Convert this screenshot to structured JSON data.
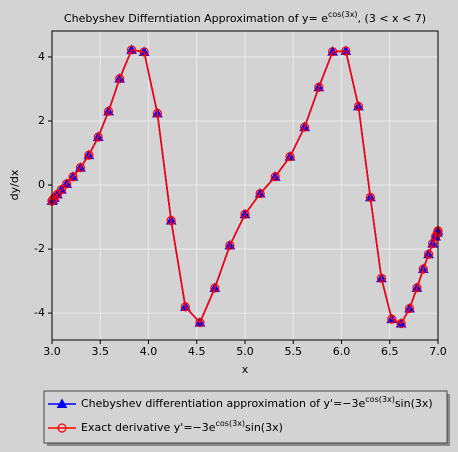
{
  "chart_data": {
    "type": "line",
    "title": [
      "Chebyshev Differntiation Approximation of y= e",
      "cos(3x)",
      ", (3 < x < 7)"
    ],
    "x_label": "x",
    "y_label": "dy/dx",
    "x": [
      3,
      3.00616,
      3.02462,
      3.05526,
      3.09789,
      3.15224,
      3.21799,
      3.29472,
      3.38197,
      3.47918,
      3.58579,
      3.7011,
      3.82443,
      3.955,
      4.09202,
      4.23463,
      4.38197,
      4.53309,
      4.68713,
      4.84309,
      5,
      5.15691,
      5.31287,
      5.46691,
      5.61803,
      5.76537,
      5.90798,
      6.045,
      6.17557,
      6.2989,
      6.41421,
      6.52082,
      6.61803,
      6.70528,
      6.78201,
      6.84776,
      6.90211,
      6.94474,
      6.97538,
      6.99384,
      7
    ],
    "series": [
      {
        "name": [
          "Chebyshev differentiation approximation of y'=−3e",
          "cos(3x)",
          "sin(3x)"
        ],
        "color": "#0000ff",
        "marker": "triangle",
        "values": [
          -0.4971,
          -0.4732,
          -0.4032,
          -0.2922,
          -0.1455,
          0.0353,
          0.2574,
          0.5428,
          0.9343,
          1.4991,
          2.3015,
          3.3211,
          4.2193,
          4.1561,
          2.2387,
          -1.1074,
          -3.8055,
          -4.2961,
          -3.2174,
          -1.8861,
          -0.9126,
          -0.2667,
          0.2591,
          0.8876,
          1.8097,
          3.0522,
          4.1646,
          4.1848,
          2.457,
          -0.3838,
          -2.9128,
          -4.1878,
          -4.3262,
          -3.8551,
          -3.213,
          -2.6245,
          -2.1621,
          -1.8293,
          -1.6094,
          -1.4848,
          -1.4297
        ]
      },
      {
        "name": [
          "Exact derivative y'=−3e",
          "cos(3x)",
          "sin(3x)"
        ],
        "color": "#ff0000",
        "marker": "circle",
        "values": [
          -0.4971,
          -0.4732,
          -0.4032,
          -0.2922,
          -0.1455,
          0.0353,
          0.2574,
          0.5428,
          0.9343,
          1.4991,
          2.3015,
          3.3211,
          4.2193,
          4.1561,
          2.2387,
          -1.1074,
          -3.8055,
          -4.2961,
          -3.2174,
          -1.8861,
          -0.9126,
          -0.2667,
          0.2591,
          0.8876,
          1.8097,
          3.0522,
          4.1646,
          4.1848,
          2.457,
          -0.3838,
          -2.9128,
          -4.1878,
          -4.3262,
          -3.8551,
          -3.213,
          -2.6245,
          -2.1621,
          -1.8293,
          -1.6094,
          -1.4848,
          -1.4297
        ]
      }
    ],
    "xlim": [
      3,
      7
    ],
    "ylim": [
      -4.84,
      4.81
    ],
    "xticks": [
      {
        "value": 3,
        "label": "3.0"
      },
      {
        "value": 3.5,
        "label": "3.5"
      },
      {
        "value": 4,
        "label": "4.0"
      },
      {
        "value": 4.5,
        "label": "4.5"
      },
      {
        "value": 5,
        "label": "5.0"
      },
      {
        "value": 5.5,
        "label": "5.5"
      },
      {
        "value": 6,
        "label": "6.0"
      },
      {
        "value": 6.5,
        "label": "6.5"
      },
      {
        "value": 7,
        "label": "7.0"
      }
    ],
    "yticks": [
      -4,
      -2,
      0,
      2,
      4
    ],
    "grid": true,
    "legend": "bottom"
  }
}
